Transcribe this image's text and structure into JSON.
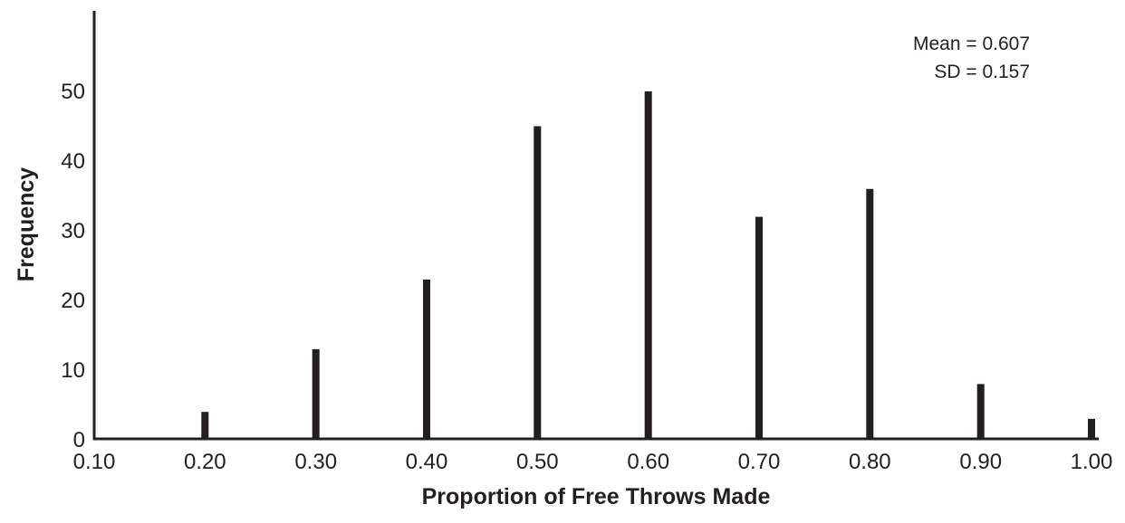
{
  "chart_data": {
    "type": "bar",
    "title": "",
    "xlabel": "Proportion of Free Throws Made",
    "ylabel": "Frequency",
    "x": [
      0.2,
      0.3,
      0.4,
      0.5,
      0.6,
      0.7,
      0.8,
      0.9,
      1.0
    ],
    "values": [
      4,
      13,
      23,
      45,
      50,
      32,
      36,
      8,
      3
    ],
    "xlim": [
      0.1,
      1.0
    ],
    "ylim": [
      0,
      60
    ],
    "x_tick_labels": [
      "0.10",
      "0.20",
      "0.30",
      "0.40",
      "0.50",
      "0.60",
      "0.70",
      "0.80",
      "0.90",
      "1.00"
    ],
    "y_ticks": [
      0,
      10,
      20,
      30,
      40,
      50
    ],
    "y_tick_labels": [
      "0",
      "10",
      "20",
      "30",
      "40",
      "50"
    ],
    "grid": false,
    "annotations": [
      "Mean = 0.607",
      "SD = 0.157"
    ],
    "annotation_position": "top-right",
    "bar_color": "#231f20",
    "axis_color": "#231f20"
  }
}
